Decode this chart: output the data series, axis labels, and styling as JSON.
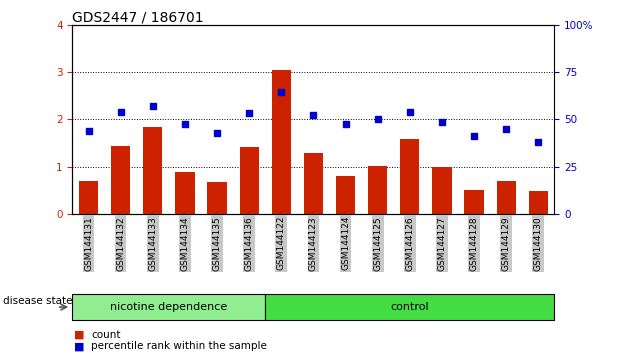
{
  "title": "GDS2447 / 186701",
  "categories": [
    "GSM144131",
    "GSM144132",
    "GSM144133",
    "GSM144134",
    "GSM144135",
    "GSM144136",
    "GSM144122",
    "GSM144123",
    "GSM144124",
    "GSM144125",
    "GSM144126",
    "GSM144127",
    "GSM144128",
    "GSM144129",
    "GSM144130"
  ],
  "count_values": [
    0.7,
    1.45,
    1.85,
    0.9,
    0.68,
    1.42,
    3.05,
    1.3,
    0.8,
    1.02,
    1.58,
    1.0,
    0.52,
    0.7,
    0.48
  ],
  "percentile_values": [
    1.75,
    2.15,
    2.28,
    1.9,
    1.72,
    2.13,
    2.58,
    2.1,
    1.9,
    2.02,
    2.15,
    1.95,
    1.65,
    1.8,
    1.52
  ],
  "bar_color": "#cc2200",
  "dot_color": "#0000cc",
  "ylim_left": [
    0,
    4
  ],
  "ylim_right": [
    0,
    100
  ],
  "yticks_left": [
    0,
    1,
    2,
    3,
    4
  ],
  "yticks_right": [
    0,
    25,
    50,
    75,
    100
  ],
  "ytick_labels_right": [
    "0",
    "25",
    "50",
    "75",
    "100%"
  ],
  "group1_label": "nicotine dependence",
  "group2_label": "control",
  "group1_count": 6,
  "group2_count": 9,
  "disease_state_label": "disease state",
  "legend_count_label": "count",
  "legend_percentile_label": "percentile rank within the sample",
  "group1_color": "#90ee90",
  "group2_color": "#44dd44",
  "tick_bg_color": "#c8c8c8",
  "background_color": "#ffffff",
  "title_fontsize": 10,
  "tick_fontsize": 7.5,
  "legend_fontsize": 7.5,
  "category_fontsize": 6.5
}
